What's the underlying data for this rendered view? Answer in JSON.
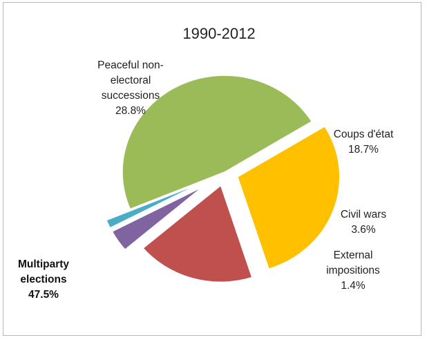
{
  "chart_data": {
    "type": "pie",
    "title": "1990-2012",
    "slices": [
      {
        "label": "Multiparty elections",
        "label_lines": [
          "Multiparty",
          "elections",
          "47.5%"
        ],
        "value": 47.5,
        "value_text": "47.5%",
        "color": "#9bbb59",
        "bold": true
      },
      {
        "label": "Peaceful non-electoral successions",
        "label_lines": [
          "Peaceful non-",
          "electoral",
          "successions",
          "28.8%"
        ],
        "value": 28.8,
        "value_text": "28.8%",
        "color": "#ffc000",
        "bold": false
      },
      {
        "label": "Coups d'état",
        "label_lines": [
          "Coups d'état",
          "18.7%"
        ],
        "value": 18.7,
        "value_text": "18.7%",
        "color": "#c0504d",
        "bold": false
      },
      {
        "label": "Civil wars",
        "label_lines": [
          "Civil wars",
          "3.6%"
        ],
        "value": 3.6,
        "value_text": "3.6%",
        "color": "#8064a2",
        "bold": false
      },
      {
        "label": "External impositions",
        "label_lines": [
          "External",
          "impositions",
          "1.4%"
        ],
        "value": 1.4,
        "value_text": "1.4%",
        "color": "#4bacc6",
        "bold": false
      }
    ],
    "legend": "none",
    "exploded": true
  }
}
